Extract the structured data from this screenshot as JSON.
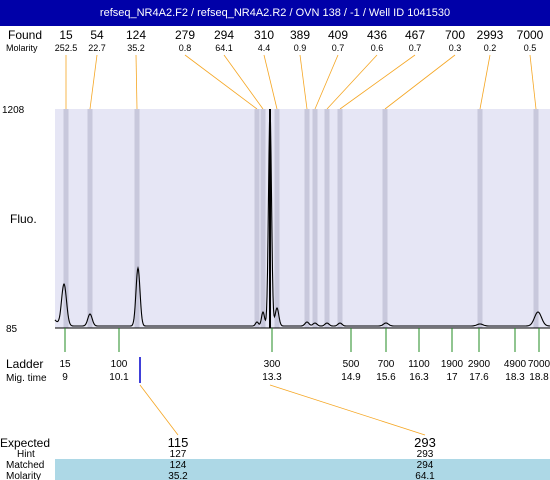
{
  "window": {
    "title": "refseq_NR4A2.F2 / refseq_NR4A2.R2 / OVN 138 / -1 / Well ID 1041530"
  },
  "colors": {
    "title_bg": "#0000a8",
    "plot_bg": "#e6e6f5",
    "band": "#c8c8dc",
    "connector": "#f5a623",
    "ladder_tick": "#228b22",
    "selected_tick": "#0000cc",
    "highlight_row": "#add8e6",
    "trace": "#000000"
  },
  "labels": {
    "found": "Found",
    "molarity": "Molarity",
    "fluo": "Fluo.",
    "ladder": "Ladder",
    "mig_time": "Mig. time",
    "expected": "Expected",
    "hint": "Hint",
    "matched": "Matched",
    "molarity_bottom": "Molarity"
  },
  "chart_data": {
    "type": "line",
    "y_axis_ticks": [
      "1208",
      "85"
    ],
    "ylim": [
      85,
      1208
    ],
    "found_peaks": [
      {
        "size": "15",
        "molarity": "252.5"
      },
      {
        "size": "54",
        "molarity": "22.7"
      },
      {
        "size": "124",
        "molarity": "35.2"
      },
      {
        "size": "279",
        "molarity": "0.8"
      },
      {
        "size": "294",
        "molarity": "64.1"
      },
      {
        "size": "310",
        "molarity": "4.4"
      },
      {
        "size": "389",
        "molarity": "0.9"
      },
      {
        "size": "409",
        "molarity": "0.7"
      },
      {
        "size": "436",
        "molarity": "0.6"
      },
      {
        "size": "467",
        "molarity": "0.7"
      },
      {
        "size": "700",
        "molarity": "0.3"
      },
      {
        "size": "2993",
        "molarity": "0.2"
      },
      {
        "size": "7000",
        "molarity": "0.5"
      }
    ],
    "ladder": [
      {
        "size": "15",
        "mig_time": "9"
      },
      {
        "size": "100",
        "mig_time": "10.1"
      },
      {
        "size": "300",
        "mig_time": "13.3"
      },
      {
        "size": "500",
        "mig_time": "14.9"
      },
      {
        "size": "700",
        "mig_time": "15.6"
      },
      {
        "size": "1100",
        "mig_time": "16.3"
      },
      {
        "size": "1900",
        "mig_time": "17"
      },
      {
        "size": "2900",
        "mig_time": "17.6"
      },
      {
        "size": "4900",
        "mig_time": "18.3"
      },
      {
        "size": "7000",
        "mig_time": "18.8"
      }
    ],
    "expected": [
      {
        "expected": "115",
        "hint": "127",
        "matched": "124",
        "molarity": "35.2"
      },
      {
        "expected": "293",
        "hint": "293",
        "matched": "294",
        "molarity": "64.1"
      }
    ]
  }
}
